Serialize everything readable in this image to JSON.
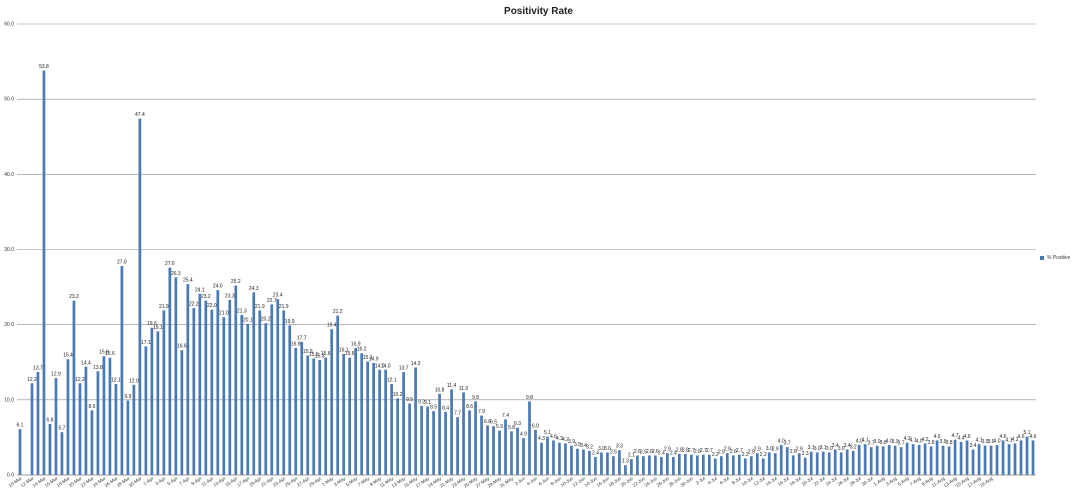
{
  "chart_data": {
    "type": "bar",
    "title": "Positivity Rate",
    "xlabel": "",
    "ylabel": "",
    "ylim": [
      0,
      60
    ],
    "yticks": [
      "0.0",
      "10.0",
      "20.0",
      "30.0",
      "40.0",
      "50.0",
      "60.0"
    ],
    "grid": true,
    "legend": "right",
    "bar_color": "#4a7ab5",
    "series": [
      {
        "name": "% Positive",
        "values": [
          6.1,
          0,
          12.2,
          13.7,
          53.8,
          6.8,
          12.9,
          5.7,
          15.4,
          23.2,
          12.2,
          14.4,
          8.6,
          13.8,
          15.8,
          15.6,
          12.1,
          27.8,
          9.9,
          12.0,
          47.4,
          17.1,
          19.6,
          19.1,
          21.9,
          27.6,
          26.3,
          16.6,
          25.4,
          22.2,
          24.1,
          23.2,
          22.0,
          24.6,
          21.0,
          23.3,
          25.2,
          21.3,
          20.1,
          24.3,
          21.9,
          20.2,
          22.7,
          23.4,
          21.9,
          19.9,
          16.9,
          17.7,
          15.9,
          15.5,
          15.3,
          15.6,
          19.4,
          21.2,
          16.1,
          15.6,
          16.9,
          16.2,
          15.1,
          14.9,
          14.0,
          14.0,
          12.1,
          10.2,
          13.7,
          9.5,
          14.3,
          9.2,
          9.1,
          8.5,
          10.8,
          8.4,
          11.4,
          7.7,
          11.0,
          8.6,
          9.8,
          7.9,
          6.6,
          6.5,
          5.9,
          7.4,
          5.8,
          6.3,
          4.9,
          9.8,
          6.0,
          4.3,
          5.1,
          4.6,
          4.3,
          4.2,
          3.9,
          3.5,
          3.4,
          3.2,
          2.4,
          3.0,
          3.0,
          2.5,
          3.3,
          1.3,
          2.1,
          2.6,
          2.5,
          2.6,
          2.6,
          2.4,
          2.9,
          2.4,
          2.8,
          2.8,
          2.7,
          2.6,
          2.7,
          2.7,
          2.2,
          2.5,
          2.9,
          2.6,
          2.7,
          2.2,
          2.5,
          2.9,
          2.2,
          3.0,
          2.9,
          4.0,
          3.7,
          2.6,
          2.9,
          2.3,
          3.1,
          3.0,
          3.1,
          3.0,
          3.4,
          3.0,
          3.4,
          3.2,
          4.0,
          4.1,
          3.7,
          3.9,
          3.8,
          4.0,
          3.9,
          3.7,
          4.3,
          4.1,
          4.0,
          4.2,
          3.8,
          4.6,
          3.9,
          3.8,
          4.7,
          4.4,
          4.6,
          3.4,
          4.1,
          3.9,
          3.9,
          4.0,
          4.6,
          4.1,
          4.2,
          4.6,
          5.1,
          4.6
        ]
      }
    ],
    "xticks": [
      {
        "i": 0,
        "label": "10-Mar"
      },
      {
        "i": 2,
        "label": "12-Mar"
      },
      {
        "i": 4,
        "label": "14-Mar"
      },
      {
        "i": 6,
        "label": "16-Mar"
      },
      {
        "i": 8,
        "label": "18-Mar"
      },
      {
        "i": 10,
        "label": "20-Mar"
      },
      {
        "i": 12,
        "label": "22-Mar"
      },
      {
        "i": 14,
        "label": "24-Mar"
      },
      {
        "i": 16,
        "label": "26-Mar"
      },
      {
        "i": 18,
        "label": "28-Mar"
      },
      {
        "i": 20,
        "label": "30-Mar"
      },
      {
        "i": 22,
        "label": "1-Apr"
      },
      {
        "i": 24,
        "label": "3-Apr"
      },
      {
        "i": 26,
        "label": "5-Apr"
      },
      {
        "i": 28,
        "label": "7-Apr"
      },
      {
        "i": 30,
        "label": "9-Apr"
      },
      {
        "i": 32,
        "label": "11-Apr"
      },
      {
        "i": 34,
        "label": "13-Apr"
      },
      {
        "i": 36,
        "label": "15-Apr"
      },
      {
        "i": 38,
        "label": "17-Apr"
      },
      {
        "i": 40,
        "label": "19-Apr"
      },
      {
        "i": 42,
        "label": "21-Apr"
      },
      {
        "i": 44,
        "label": "23-Apr"
      },
      {
        "i": 46,
        "label": "25-Apr"
      },
      {
        "i": 48,
        "label": "27-Apr"
      },
      {
        "i": 50,
        "label": "29-Apr"
      },
      {
        "i": 52,
        "label": "1-May"
      },
      {
        "i": 54,
        "label": "3-May"
      },
      {
        "i": 56,
        "label": "5-May"
      },
      {
        "i": 58,
        "label": "7-May"
      },
      {
        "i": 60,
        "label": "9-May"
      },
      {
        "i": 62,
        "label": "11-May"
      },
      {
        "i": 64,
        "label": "13-May"
      },
      {
        "i": 66,
        "label": "15-May"
      },
      {
        "i": 68,
        "label": "17-May"
      },
      {
        "i": 70,
        "label": "19-May"
      },
      {
        "i": 72,
        "label": "21-May"
      },
      {
        "i": 74,
        "label": "23-May"
      },
      {
        "i": 76,
        "label": "25-May"
      },
      {
        "i": 78,
        "label": "27-May"
      },
      {
        "i": 80,
        "label": "29-May"
      },
      {
        "i": 82,
        "label": "31-May"
      },
      {
        "i": 84,
        "label": "2-Jun"
      },
      {
        "i": 86,
        "label": "4-Jun"
      },
      {
        "i": 88,
        "label": "6-Jun"
      },
      {
        "i": 90,
        "label": "8-Jun"
      },
      {
        "i": 92,
        "label": "10-Jun"
      },
      {
        "i": 94,
        "label": "12-Jun"
      },
      {
        "i": 96,
        "label": "14-Jun"
      },
      {
        "i": 98,
        "label": "16-Jun"
      },
      {
        "i": 100,
        "label": "18-Jun"
      },
      {
        "i": 102,
        "label": "20-Jun"
      },
      {
        "i": 104,
        "label": "22-Jun"
      },
      {
        "i": 106,
        "label": "24-Jun"
      },
      {
        "i": 108,
        "label": "26-Jun"
      },
      {
        "i": 110,
        "label": "28-Jun"
      },
      {
        "i": 112,
        "label": "30-Jun"
      },
      {
        "i": 114,
        "label": "2-Jul"
      },
      {
        "i": 116,
        "label": "4-Jul"
      },
      {
        "i": 118,
        "label": "6-Jul"
      },
      {
        "i": 120,
        "label": "8-Jul"
      },
      {
        "i": 122,
        "label": "10-Jul"
      },
      {
        "i": 124,
        "label": "12-Jul"
      },
      {
        "i": 126,
        "label": "14-Jul"
      },
      {
        "i": 128,
        "label": "16-Jul"
      },
      {
        "i": 130,
        "label": "18-Jul"
      },
      {
        "i": 132,
        "label": "20-Jul"
      },
      {
        "i": 134,
        "label": "22-Jul"
      },
      {
        "i": 136,
        "label": "24-Jul"
      },
      {
        "i": 138,
        "label": "26-Jul"
      },
      {
        "i": 140,
        "label": "28-Jul"
      },
      {
        "i": 142,
        "label": "30-Jul"
      },
      {
        "i": 144,
        "label": "1-Aug"
      },
      {
        "i": 146,
        "label": "3-Aug"
      },
      {
        "i": 148,
        "label": "5-Aug"
      },
      {
        "i": 150,
        "label": "7-Aug"
      },
      {
        "i": 152,
        "label": "9-Aug"
      },
      {
        "i": 154,
        "label": "11-Aug"
      },
      {
        "i": 156,
        "label": "13-Aug"
      },
      {
        "i": 158,
        "label": "15-Aug"
      },
      {
        "i": 160,
        "label": "17-Aug"
      },
      {
        "i": 162,
        "label": "19-Aug"
      }
    ]
  }
}
